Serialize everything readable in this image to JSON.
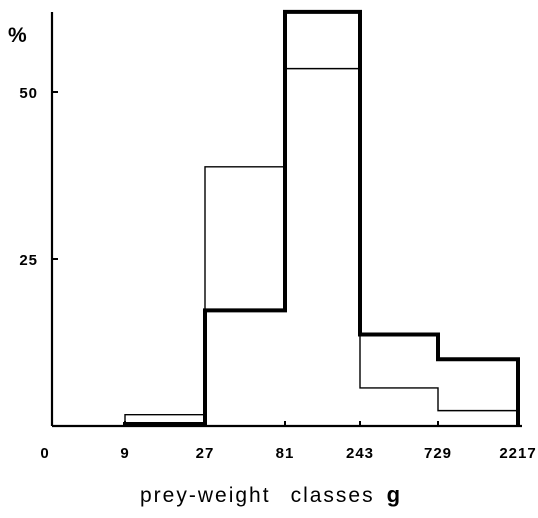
{
  "chart_data": {
    "type": "step histogram",
    "ylabel": "%",
    "xlabel": "prey-weight",
    "xlabel_classes": "classes",
    "xlabel_unit": "g",
    "x_bin_edges": [
      0,
      9,
      27,
      81,
      243,
      729,
      2217
    ],
    "x_tick_labels": [
      "0",
      "9",
      "27",
      "81",
      "243",
      "729",
      "2217"
    ],
    "y_ticks": [
      25,
      50
    ],
    "y_tick_labels": [
      "25",
      "50"
    ],
    "ylim": [
      0,
      62
    ],
    "grid": false,
    "series": [
      {
        "style": "thin",
        "color": "#000000",
        "values": [
          0,
          1.7,
          38.8,
          53.5,
          5.7,
          2.3
        ]
      },
      {
        "style": "thick",
        "color": "#000000",
        "values": [
          0,
          0.3,
          17.3,
          62,
          13.7,
          10
        ]
      }
    ]
  }
}
